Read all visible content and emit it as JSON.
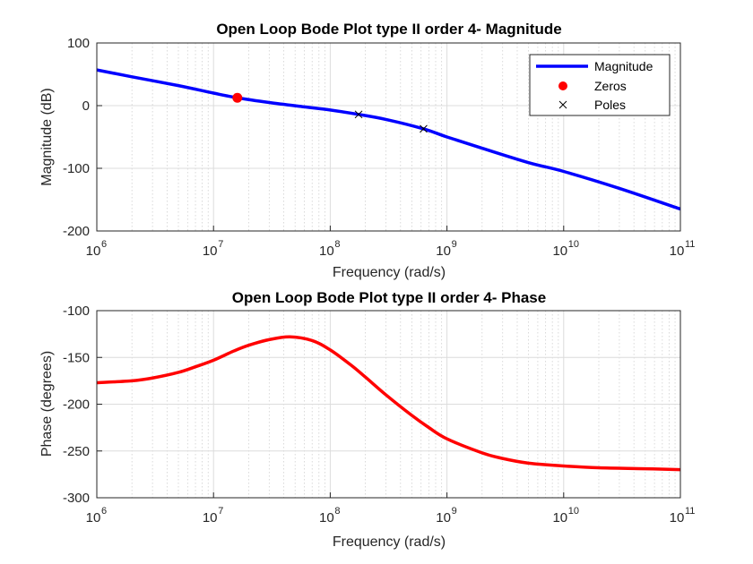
{
  "chart_data": [
    {
      "type": "line",
      "title": "Open Loop Bode Plot type II order 4- Magnitude",
      "xlabel": "Frequency (rad/s)",
      "ylabel": "Magnitude (dB)",
      "xscale": "log",
      "xlim": [
        1000000,
        100000000000
      ],
      "ylim": [
        -200,
        100
      ],
      "xticks": [
        1000000,
        10000000,
        100000000,
        1000000000,
        10000000000,
        100000000000
      ],
      "xtick_labels": [
        {
          "base": "10",
          "exp": "6"
        },
        {
          "base": "10",
          "exp": "7"
        },
        {
          "base": "10",
          "exp": "8"
        },
        {
          "base": "10",
          "exp": "9"
        },
        {
          "base": "10",
          "exp": "10"
        },
        {
          "base": "10",
          "exp": "11"
        }
      ],
      "yticks": [
        100,
        0,
        -100,
        -200
      ],
      "ytick_labels": [
        "100",
        "0",
        "-100",
        "-200"
      ],
      "grid": true,
      "legend_position": "top-right",
      "series": [
        {
          "name": "Magnitude",
          "color": "#0000ff",
          "x": [
            1000000,
            2000000,
            5000000,
            10000000,
            16000000,
            30000000,
            60000000,
            100000000,
            175000000,
            300000000,
            630000000,
            1000000000,
            2000000000,
            5000000000,
            10000000000,
            30000000000,
            100000000000
          ],
          "y": [
            57,
            46,
            32,
            20,
            12.5,
            5,
            -2,
            -7,
            -14,
            -22,
            -37,
            -50,
            -68,
            -91,
            -105,
            -132,
            -165
          ]
        }
      ],
      "markers": [
        {
          "name": "Zeros",
          "symbol": "filled-circle",
          "color": "#ff0000",
          "points": [
            {
              "x": 16000000,
              "y": 12.5
            }
          ]
        },
        {
          "name": "Poles",
          "symbol": "x",
          "color": "#000000",
          "points": [
            {
              "x": 175000000,
              "y": -14
            },
            {
              "x": 630000000,
              "y": -37
            }
          ]
        }
      ]
    },
    {
      "type": "line",
      "title": "Open Loop Bode Plot type II order 4- Phase",
      "xlabel": "Frequency (rad/s)",
      "ylabel": "Phase (degrees)",
      "xscale": "log",
      "xlim": [
        1000000,
        100000000000
      ],
      "ylim": [
        -300,
        -100
      ],
      "xticks": [
        1000000,
        10000000,
        100000000,
        1000000000,
        10000000000,
        100000000000
      ],
      "xtick_labels": [
        {
          "base": "10",
          "exp": "6"
        },
        {
          "base": "10",
          "exp": "7"
        },
        {
          "base": "10",
          "exp": "8"
        },
        {
          "base": "10",
          "exp": "9"
        },
        {
          "base": "10",
          "exp": "10"
        },
        {
          "base": "10",
          "exp": "11"
        }
      ],
      "yticks": [
        -100,
        -150,
        -200,
        -250,
        -300
      ],
      "ytick_labels": [
        "-100",
        "-150",
        "-200",
        "-250",
        "-300"
      ],
      "grid": true,
      "series": [
        {
          "color": "#ff0000",
          "x": [
            1000000,
            2000000,
            3000000,
            5000000,
            7000000,
            10000000,
            15000000,
            20000000,
            30000000,
            45000000,
            70000000,
            100000000,
            150000000,
            200000000,
            300000000,
            500000000,
            700000000,
            1000000000,
            2000000000,
            3000000000,
            5000000000,
            10000000000,
            20000000000,
            50000000000,
            100000000000
          ],
          "y": [
            -177,
            -175,
            -172,
            -166,
            -160,
            -153,
            -143,
            -137,
            -131,
            -128,
            -132,
            -142,
            -158,
            -171,
            -190,
            -212,
            -225,
            -237,
            -252,
            -258,
            -263,
            -266,
            -268,
            -269,
            -270
          ]
        }
      ]
    }
  ]
}
